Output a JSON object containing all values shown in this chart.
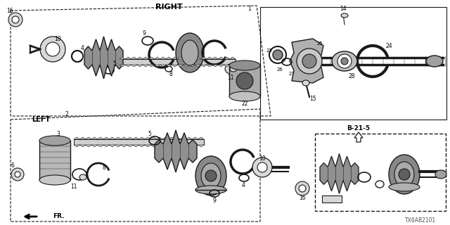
{
  "bg_color": "#ffffff",
  "line_color": "#1a1a1a",
  "text_color": "#000000",
  "gray_fill": "#b0b0b0",
  "light_gray": "#d8d8d8",
  "dark_gray": "#555555",
  "right_label": "RIGHT",
  "left_label": "LEFT",
  "fr_label": "FR.",
  "diagram_code": "TX6AB2101",
  "inset_label": "B-21-5",
  "figsize": [
    6.4,
    3.2
  ],
  "dpi": 100
}
